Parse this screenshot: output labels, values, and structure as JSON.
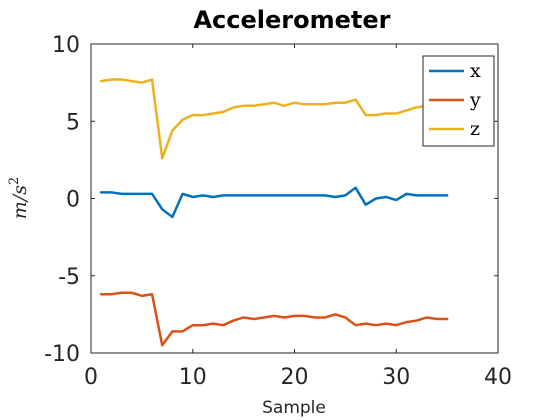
{
  "chart_data": {
    "type": "line",
    "title": "Accelerometer",
    "xlabel": "Sample",
    "ylabel": "m/s",
    "ylabel_sup": "2",
    "xlim": [
      0,
      40
    ],
    "ylim": [
      -10,
      10
    ],
    "xticks": [
      0,
      10,
      20,
      30,
      40
    ],
    "yticks": [
      -10,
      -5,
      0,
      5,
      10
    ],
    "ytick_labels": [
      "-10",
      "-5",
      "0",
      "5",
      "10"
    ],
    "grid": false,
    "legend_position": "top-right",
    "x": [
      1,
      2,
      3,
      4,
      5,
      6,
      7,
      8,
      9,
      10,
      11,
      12,
      13,
      14,
      15,
      16,
      17,
      18,
      19,
      20,
      21,
      22,
      23,
      24,
      25,
      26,
      27,
      28,
      29,
      30,
      31,
      32,
      33,
      34,
      35
    ],
    "series": [
      {
        "name": "x",
        "color": "#0072BD",
        "values": [
          0.4,
          0.4,
          0.3,
          0.3,
          0.3,
          0.3,
          -0.7,
          -1.2,
          0.3,
          0.1,
          0.2,
          0.1,
          0.2,
          0.2,
          0.2,
          0.2,
          0.2,
          0.2,
          0.2,
          0.2,
          0.2,
          0.2,
          0.2,
          0.1,
          0.2,
          0.7,
          -0.4,
          0.0,
          0.1,
          -0.1,
          0.3,
          0.2,
          0.2,
          0.2,
          0.2
        ]
      },
      {
        "name": "y",
        "color": "#D95319",
        "values": [
          -6.2,
          -6.2,
          -6.1,
          -6.1,
          -6.3,
          -6.2,
          -9.5,
          -8.6,
          -8.6,
          -8.2,
          -8.2,
          -8.1,
          -8.2,
          -7.9,
          -7.7,
          -7.8,
          -7.7,
          -7.6,
          -7.7,
          -7.6,
          -7.6,
          -7.7,
          -7.7,
          -7.5,
          -7.7,
          -8.2,
          -8.1,
          -8.2,
          -8.1,
          -8.2,
          -8.0,
          -7.9,
          -7.7,
          -7.8,
          -7.8
        ]
      },
      {
        "name": "z",
        "color": "#EDB120",
        "values": [
          7.6,
          7.7,
          7.7,
          7.6,
          7.5,
          7.7,
          2.6,
          4.4,
          5.1,
          5.4,
          5.4,
          5.5,
          5.6,
          5.9,
          6.0,
          6.0,
          6.1,
          6.2,
          6.0,
          6.2,
          6.1,
          6.1,
          6.1,
          6.2,
          6.2,
          6.4,
          5.4,
          5.4,
          5.5,
          5.5,
          5.7,
          5.9,
          6.0,
          6.1,
          6.1
        ]
      }
    ]
  }
}
